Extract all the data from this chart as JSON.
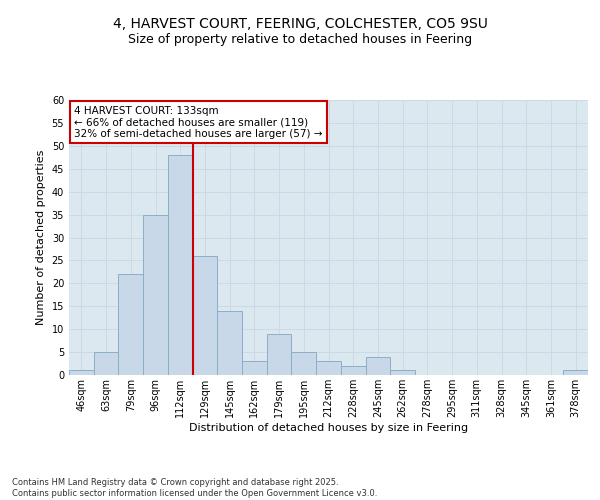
{
  "title_line1": "4, HARVEST COURT, FEERING, COLCHESTER, CO5 9SU",
  "title_line2": "Size of property relative to detached houses in Feering",
  "xlabel": "Distribution of detached houses by size in Feering",
  "ylabel": "Number of detached properties",
  "categories": [
    "46sqm",
    "63sqm",
    "79sqm",
    "96sqm",
    "112sqm",
    "129sqm",
    "145sqm",
    "162sqm",
    "179sqm",
    "195sqm",
    "212sqm",
    "228sqm",
    "245sqm",
    "262sqm",
    "278sqm",
    "295sqm",
    "311sqm",
    "328sqm",
    "345sqm",
    "361sqm",
    "378sqm"
  ],
  "values": [
    1,
    5,
    22,
    35,
    48,
    26,
    14,
    3,
    9,
    5,
    3,
    2,
    4,
    1,
    0,
    0,
    0,
    0,
    0,
    0,
    1
  ],
  "bar_color": "#c8d8e8",
  "bar_edge_color": "#8aafc8",
  "vline_position": 4.5,
  "vline_color": "#cc0000",
  "ylim": [
    0,
    60
  ],
  "yticks": [
    0,
    5,
    10,
    15,
    20,
    25,
    30,
    35,
    40,
    45,
    50,
    55,
    60
  ],
  "annotation_text": "4 HARVEST COURT: 133sqm\n← 66% of detached houses are smaller (119)\n32% of semi-detached houses are larger (57) →",
  "annotation_box_facecolor": "#ffffff",
  "annotation_box_edgecolor": "#cc0000",
  "grid_color": "#ccd8e4",
  "background_color": "#dce8f0",
  "footer_text": "Contains HM Land Registry data © Crown copyright and database right 2025.\nContains public sector information licensed under the Open Government Licence v3.0.",
  "title_fontsize": 10,
  "subtitle_fontsize": 9,
  "tick_fontsize": 7,
  "xlabel_fontsize": 8,
  "ylabel_fontsize": 8,
  "annotation_fontsize": 7.5,
  "footer_fontsize": 6
}
